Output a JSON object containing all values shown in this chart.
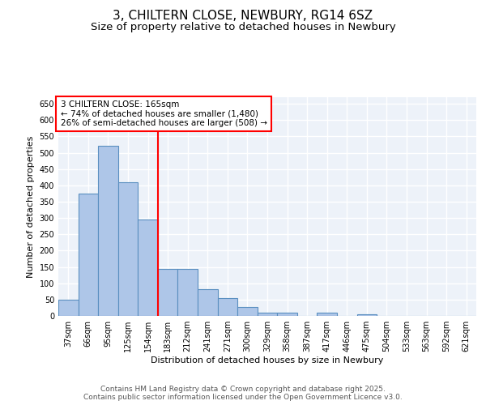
{
  "title_line1": "3, CHILTERN CLOSE, NEWBURY, RG14 6SZ",
  "title_line2": "Size of property relative to detached houses in Newbury",
  "xlabel": "Distribution of detached houses by size in Newbury",
  "ylabel": "Number of detached properties",
  "categories": [
    "37sqm",
    "66sqm",
    "95sqm",
    "125sqm",
    "154sqm",
    "183sqm",
    "212sqm",
    "241sqm",
    "271sqm",
    "300sqm",
    "329sqm",
    "358sqm",
    "387sqm",
    "417sqm",
    "446sqm",
    "475sqm",
    "504sqm",
    "533sqm",
    "563sqm",
    "592sqm",
    "621sqm"
  ],
  "values": [
    50,
    375,
    520,
    410,
    295,
    145,
    145,
    83,
    55,
    28,
    10,
    10,
    0,
    10,
    0,
    5,
    0,
    0,
    0,
    0,
    0
  ],
  "bar_color": "#aec6e8",
  "bar_edge_color": "#5a8fc0",
  "annotation_box_text": "3 CHILTERN CLOSE: 165sqm\n← 74% of detached houses are smaller (1,480)\n26% of semi-detached houses are larger (508) →",
  "vline_color": "red",
  "vline_x": 4.5,
  "ylim": [
    0,
    670
  ],
  "yticks": [
    0,
    50,
    100,
    150,
    200,
    250,
    300,
    350,
    400,
    450,
    500,
    550,
    600,
    650
  ],
  "background_color": "#edf2f9",
  "grid_color": "white",
  "footer": "Contains HM Land Registry data © Crown copyright and database right 2025.\nContains public sector information licensed under the Open Government Licence v3.0.",
  "title_fontsize": 11,
  "subtitle_fontsize": 9.5,
  "axis_label_fontsize": 8,
  "tick_fontsize": 7,
  "annotation_fontsize": 7.5,
  "footer_fontsize": 6.5
}
